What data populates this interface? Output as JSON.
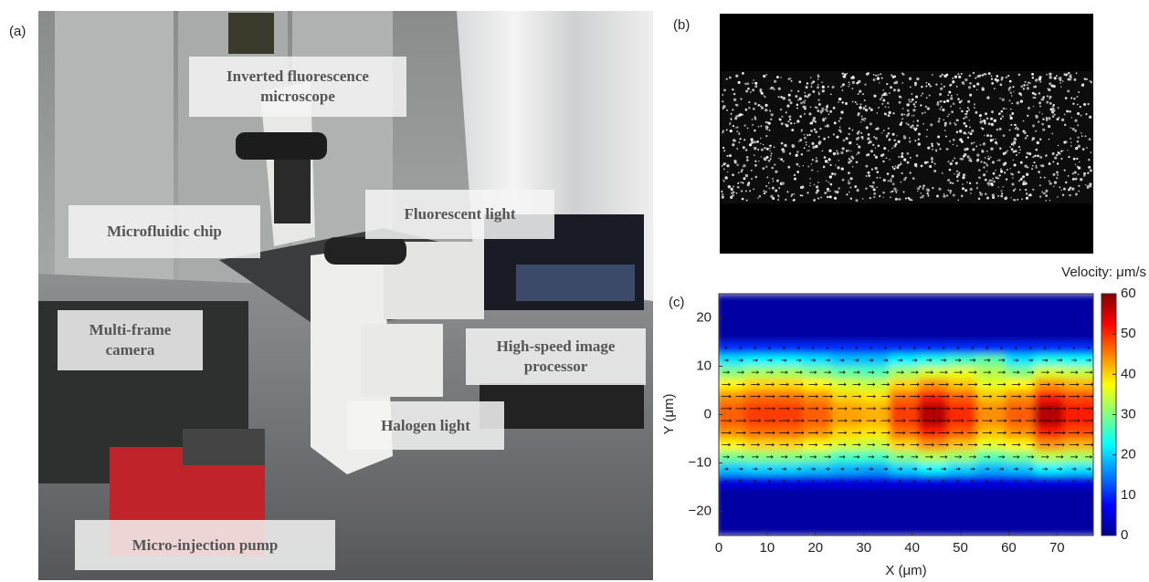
{
  "panels": [
    {
      "label": "(a)"
    },
    {
      "label": "(b)"
    },
    {
      "label": "(c)"
    }
  ],
  "photo_annotations": [
    "Inverted fluorescence microscope",
    "Microfluidic chip",
    "Fluorescent light",
    "Multi-frame camera",
    "High-speed image processor",
    "Halogen light",
    "Micro-injection pump"
  ],
  "chart_data": {
    "type": "heatmap",
    "xlabel": "X (μm)",
    "ylabel": "Y (μm)",
    "xlim": [
      0,
      77.5
    ],
    "xticks": [
      0,
      10,
      20,
      30,
      40,
      50,
      60,
      70
    ],
    "ylim": [
      -25,
      25
    ],
    "yticks": [
      {
        "value": -20,
        "label": "−20"
      },
      {
        "value": -10,
        "label": "−10"
      },
      0,
      10,
      20
    ],
    "x": [
      3,
      9,
      15,
      21,
      27,
      33,
      39,
      45,
      51,
      57,
      63,
      69,
      75
    ],
    "y": [
      23.75,
      21.25,
      18.75,
      16.25,
      13.75,
      11.25,
      8.75,
      6.25,
      3.75,
      1.25,
      -1.25,
      -3.75,
      -6.25,
      -8.75,
      -11.25,
      -13.75,
      -16.25,
      -18.75,
      -21.25,
      -23.75
    ],
    "z": [
      [
        2,
        2,
        2,
        2,
        2,
        2,
        2,
        2,
        2,
        2,
        2,
        2,
        2
      ],
      [
        2,
        2,
        2,
        2,
        2,
        2,
        2,
        2,
        2,
        2,
        2,
        2,
        2
      ],
      [
        2,
        2,
        2,
        2,
        2,
        2,
        2,
        2,
        2,
        2,
        2,
        2,
        2
      ],
      [
        2,
        2,
        2,
        2,
        2,
        2,
        2,
        2,
        2,
        2,
        2,
        2,
        2
      ],
      [
        10,
        10,
        10,
        10,
        10,
        10,
        10,
        10,
        10,
        10,
        10,
        10,
        10
      ],
      [
        21,
        22,
        22,
        21,
        19,
        19,
        22,
        24,
        26,
        28,
        21,
        24,
        23
      ],
      [
        30,
        32,
        32,
        30,
        28,
        27,
        32,
        35,
        36,
        33,
        30,
        35,
        34
      ],
      [
        38,
        40,
        40,
        38,
        35,
        34,
        40,
        44,
        41,
        36,
        38,
        44,
        42
      ],
      [
        44,
        46,
        46,
        44,
        40,
        39,
        46,
        51,
        47,
        41,
        44,
        51,
        48
      ],
      [
        47,
        49,
        49,
        47,
        43,
        42,
        49,
        57,
        50,
        44,
        47,
        57,
        51
      ],
      [
        47,
        49,
        49,
        47,
        43,
        42,
        49,
        57,
        50,
        44,
        47,
        57,
        51
      ],
      [
        44,
        46,
        46,
        44,
        40,
        39,
        46,
        51,
        47,
        41,
        44,
        51,
        48
      ],
      [
        38,
        40,
        40,
        38,
        35,
        34,
        40,
        44,
        41,
        36,
        38,
        44,
        42
      ],
      [
        29,
        30,
        30,
        29,
        26,
        26,
        30,
        33,
        31,
        27,
        29,
        33,
        32
      ],
      [
        19,
        20,
        20,
        19,
        18,
        17,
        20,
        22,
        20,
        18,
        19,
        22,
        21
      ],
      [
        6,
        6,
        6,
        6,
        6,
        6,
        6,
        6,
        6,
        6,
        6,
        6,
        6
      ],
      [
        2,
        2,
        2,
        2,
        2,
        2,
        2,
        2,
        2,
        2,
        2,
        2,
        2
      ],
      [
        2,
        2,
        2,
        2,
        2,
        2,
        2,
        2,
        2,
        2,
        2,
        2,
        2
      ],
      [
        2,
        2,
        2,
        2,
        2,
        2,
        2,
        2,
        2,
        2,
        2,
        2,
        2
      ],
      [
        2,
        2,
        2,
        2,
        2,
        2,
        2,
        2,
        2,
        2,
        2,
        2,
        2
      ]
    ],
    "colorbar": {
      "title": "Velocity: μm/s",
      "lim": [
        0,
        60
      ],
      "ticks": [
        0,
        10,
        20,
        30,
        40,
        50,
        60
      ]
    }
  }
}
